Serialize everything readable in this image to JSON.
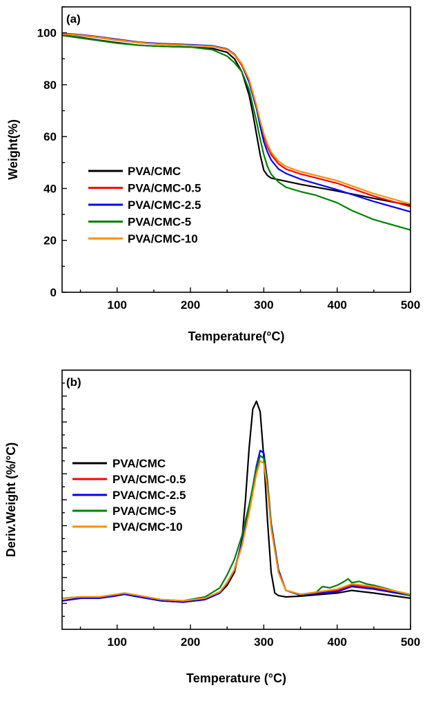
{
  "chart_data": [
    {
      "type": "line",
      "panel_label": "(a)",
      "xlabel": "Temperature(°C)",
      "ylabel": "Weight(%)",
      "xlim": [
        25,
        500
      ],
      "ylim": [
        0,
        110
      ],
      "xticks": [
        100,
        200,
        300,
        400,
        500
      ],
      "yticks": [
        0,
        20,
        40,
        60,
        80,
        100
      ],
      "legend_position": "left-middle",
      "series": [
        {
          "name": "PVA/CMC",
          "color": "#000000",
          "x": [
            25,
            50,
            75,
            100,
            130,
            160,
            200,
            230,
            250,
            260,
            270,
            280,
            285,
            290,
            295,
            300,
            305,
            310,
            320,
            330,
            350,
            400,
            450,
            500
          ],
          "y": [
            99,
            98.2,
            97.2,
            96.2,
            95.2,
            94.8,
            94.5,
            94,
            92.5,
            90,
            85,
            76,
            69,
            61,
            53,
            47,
            45,
            44,
            43.4,
            42.8,
            41.6,
            39,
            36.2,
            33.5
          ]
        },
        {
          "name": "PVA/CMC-0.5",
          "color": "#ff0000",
          "x": [
            25,
            50,
            75,
            100,
            130,
            160,
            200,
            230,
            250,
            260,
            270,
            280,
            290,
            295,
            300,
            305,
            310,
            320,
            330,
            350,
            400,
            450,
            500
          ],
          "y": [
            99.5,
            99,
            98.2,
            97.2,
            96.2,
            95.6,
            95.2,
            94.8,
            93.5,
            91.5,
            87.5,
            81,
            71,
            65,
            60,
            56,
            53,
            49.5,
            47.5,
            45.6,
            42,
            37,
            33
          ]
        },
        {
          "name": "PVA/CMC-2.5",
          "color": "#0000ff",
          "x": [
            25,
            50,
            75,
            100,
            130,
            160,
            200,
            230,
            250,
            260,
            270,
            280,
            290,
            295,
            300,
            305,
            310,
            320,
            330,
            350,
            400,
            450,
            500
          ],
          "y": [
            99.8,
            99.3,
            98.5,
            97.5,
            96.4,
            95.8,
            95.4,
            95,
            93.8,
            91.8,
            88,
            81,
            71,
            64,
            58,
            54,
            51,
            47.5,
            45.8,
            43.6,
            39.5,
            35,
            31
          ]
        },
        {
          "name": "PVA/CMC-5",
          "color": "#008000",
          "x": [
            25,
            50,
            75,
            100,
            130,
            160,
            200,
            230,
            250,
            260,
            270,
            280,
            290,
            295,
            300,
            305,
            310,
            320,
            330,
            350,
            370,
            400,
            420,
            450,
            500
          ],
          "y": [
            99,
            98,
            97,
            96,
            95.2,
            94.8,
            94.5,
            93.5,
            91,
            88.5,
            85,
            78,
            66,
            59,
            53,
            48.5,
            45.5,
            42.5,
            40.5,
            38.8,
            37.5,
            34.5,
            31.5,
            28,
            24
          ]
        },
        {
          "name": "PVA/CMC-10",
          "color": "#ff8c00",
          "x": [
            25,
            50,
            75,
            100,
            130,
            160,
            200,
            230,
            250,
            260,
            270,
            280,
            290,
            295,
            300,
            305,
            310,
            320,
            330,
            350,
            400,
            450,
            500
          ],
          "y": [
            99.6,
            99.1,
            98.3,
            97.3,
            96.2,
            95.6,
            95.2,
            94.8,
            93.6,
            91.6,
            88,
            82,
            72,
            66,
            61,
            57,
            54,
            50.5,
            48.5,
            46.5,
            43,
            38,
            34
          ]
        }
      ]
    },
    {
      "type": "line",
      "panel_label": "(b)",
      "xlabel": "Temperature (°C)",
      "ylabel": "Deriv.Weight (%/°C)",
      "xlim": [
        25,
        500
      ],
      "ylim": [
        0,
        100
      ],
      "xticks": [
        100,
        200,
        300,
        400,
        500
      ],
      "yticks": [],
      "legend_position": "left-middle",
      "series": [
        {
          "name": "PVA/CMC",
          "color": "#000000",
          "x": [
            25,
            50,
            75,
            100,
            110,
            130,
            160,
            190,
            220,
            240,
            250,
            260,
            270,
            275,
            280,
            285,
            290,
            295,
            300,
            305,
            310,
            315,
            320,
            330,
            350,
            400,
            420,
            450,
            500
          ],
          "y": [
            11,
            12,
            12,
            13,
            13.5,
            12.5,
            11,
            10.5,
            11.5,
            14,
            17,
            22,
            34,
            50,
            70,
            85,
            88,
            84,
            66,
            42,
            22,
            14,
            13,
            12.5,
            12.8,
            14,
            15,
            14,
            12
          ]
        },
        {
          "name": "PVA/CMC-0.5",
          "color": "#ff0000",
          "x": [
            25,
            50,
            75,
            100,
            110,
            130,
            160,
            190,
            220,
            240,
            250,
            260,
            270,
            280,
            290,
            295,
            300,
            305,
            310,
            320,
            330,
            350,
            400,
            420,
            450,
            500
          ],
          "y": [
            11,
            12,
            12,
            13,
            13.5,
            12.5,
            11,
            10.5,
            11.5,
            14,
            18,
            23,
            33,
            46,
            62,
            67,
            66,
            55,
            40,
            23,
            15,
            13.2,
            15,
            17,
            16,
            13
          ]
        },
        {
          "name": "PVA/CMC-2.5",
          "color": "#0000ff",
          "x": [
            25,
            50,
            75,
            100,
            110,
            130,
            160,
            190,
            220,
            240,
            250,
            260,
            270,
            280,
            290,
            295,
            300,
            305,
            310,
            320,
            330,
            350,
            400,
            420,
            450,
            500
          ],
          "y": [
            11,
            12,
            12,
            13,
            13.5,
            12.5,
            11,
            10.5,
            11.5,
            14,
            18,
            23,
            33,
            47,
            63,
            69,
            68,
            57,
            41,
            23,
            15,
            13.2,
            14.5,
            16.5,
            15.5,
            13
          ]
        },
        {
          "name": "PVA/CMC-5",
          "color": "#008000",
          "x": [
            25,
            50,
            75,
            100,
            110,
            130,
            160,
            190,
            220,
            240,
            250,
            260,
            270,
            280,
            290,
            295,
            300,
            305,
            310,
            320,
            330,
            350,
            370,
            380,
            390,
            400,
            410,
            415,
            420,
            430,
            440,
            450,
            470,
            500
          ],
          "y": [
            12,
            12.5,
            12.5,
            13.5,
            14,
            13,
            11.5,
            11,
            12.5,
            16,
            21,
            27,
            36,
            48,
            62,
            67,
            66,
            56,
            40,
            22,
            15,
            13.5,
            14,
            16.5,
            16,
            17,
            18.5,
            19.5,
            18,
            18.5,
            17.5,
            17,
            15.5,
            13
          ]
        },
        {
          "name": "PVA/CMC-10",
          "color": "#ff8c00",
          "x": [
            25,
            50,
            75,
            100,
            110,
            130,
            160,
            190,
            220,
            240,
            250,
            260,
            270,
            280,
            290,
            295,
            300,
            305,
            310,
            320,
            330,
            350,
            400,
            420,
            450,
            500
          ],
          "y": [
            12,
            12.5,
            12.5,
            13.5,
            14,
            13,
            11.5,
            11,
            12,
            14.5,
            18,
            23,
            32,
            45,
            60,
            65,
            64,
            54,
            39,
            22,
            15,
            13.5,
            15.5,
            17.5,
            16.5,
            13.5
          ]
        }
      ]
    }
  ]
}
